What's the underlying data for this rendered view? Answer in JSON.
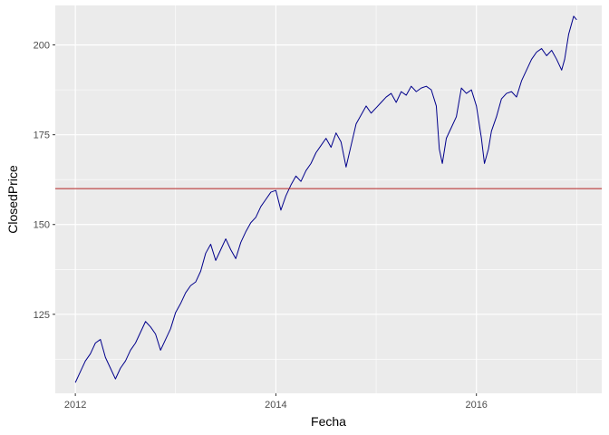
{
  "chart_data": {
    "type": "line",
    "xlabel": "Fecha",
    "ylabel": "ClosedPrice",
    "xlim": [
      2011.8,
      2017.25
    ],
    "ylim": [
      103,
      211
    ],
    "x_ticks": [
      2012,
      2014,
      2016
    ],
    "x_tick_labels": [
      "2012",
      "2014",
      "2016"
    ],
    "y_ticks": [
      125,
      150,
      175,
      200
    ],
    "y_tick_labels": [
      "125",
      "150",
      "175",
      "200"
    ],
    "grid": true,
    "reference_line": {
      "y": 160,
      "color": "#b22222"
    },
    "series": [
      {
        "color": "#00008b",
        "x": [
          2012.0,
          2012.05,
          2012.1,
          2012.15,
          2012.2,
          2012.25,
          2012.3,
          2012.35,
          2012.4,
          2012.45,
          2012.5,
          2012.55,
          2012.6,
          2012.65,
          2012.7,
          2012.75,
          2012.8,
          2012.85,
          2012.9,
          2012.95,
          2013.0,
          2013.05,
          2013.1,
          2013.15,
          2013.2,
          2013.25,
          2013.3,
          2013.35,
          2013.4,
          2013.45,
          2013.5,
          2013.55,
          2013.6,
          2013.65,
          2013.7,
          2013.75,
          2013.8,
          2013.85,
          2013.9,
          2013.95,
          2014.0,
          2014.05,
          2014.1,
          2014.15,
          2014.2,
          2014.25,
          2014.3,
          2014.35,
          2014.4,
          2014.45,
          2014.5,
          2014.55,
          2014.6,
          2014.65,
          2014.7,
          2014.75,
          2014.8,
          2014.85,
          2014.9,
          2014.95,
          2015.0,
          2015.05,
          2015.1,
          2015.15,
          2015.2,
          2015.25,
          2015.3,
          2015.35,
          2015.4,
          2015.45,
          2015.5,
          2015.55,
          2015.6,
          2015.63,
          2015.66,
          2015.7,
          2015.75,
          2015.8,
          2015.85,
          2015.9,
          2015.95,
          2016.0,
          2016.05,
          2016.08,
          2016.12,
          2016.15,
          2016.2,
          2016.25,
          2016.3,
          2016.35,
          2016.4,
          2016.45,
          2016.5,
          2016.55,
          2016.6,
          2016.65,
          2016.7,
          2016.75,
          2016.8,
          2016.85,
          2016.88,
          2016.92,
          2016.95,
          2016.97,
          2017.0
        ],
        "y": [
          106.0,
          109.0,
          112.0,
          114.0,
          117.0,
          118.0,
          113.0,
          110.0,
          107.0,
          110.0,
          112.0,
          115.0,
          117.0,
          120.0,
          123.0,
          121.5,
          119.5,
          115.0,
          118.0,
          121.0,
          125.5,
          128.0,
          131.0,
          133.0,
          134.0,
          137.0,
          142.0,
          144.5,
          140.0,
          143.0,
          146.0,
          143.0,
          140.5,
          145.0,
          148.0,
          150.5,
          152.0,
          155.0,
          157.0,
          159.0,
          159.5,
          154.0,
          158.0,
          161.0,
          163.5,
          162.0,
          165.0,
          167.0,
          170.0,
          172.0,
          174.0,
          171.5,
          175.5,
          173.0,
          166.0,
          172.0,
          178.0,
          180.5,
          183.0,
          181.0,
          182.5,
          184.0,
          185.5,
          186.5,
          184.0,
          187.0,
          186.0,
          188.5,
          187.0,
          188.0,
          188.5,
          187.5,
          183.0,
          171.0,
          167.0,
          174.0,
          177.0,
          180.0,
          188.0,
          186.5,
          187.5,
          183.0,
          174.0,
          167.0,
          171.0,
          176.0,
          180.0,
          185.0,
          186.5,
          187.0,
          185.5,
          190.0,
          193.0,
          196.0,
          198.0,
          199.0,
          197.0,
          198.5,
          196.0,
          193.0,
          196.0,
          203.0,
          206.0,
          208.0,
          207.0
        ]
      }
    ]
  }
}
